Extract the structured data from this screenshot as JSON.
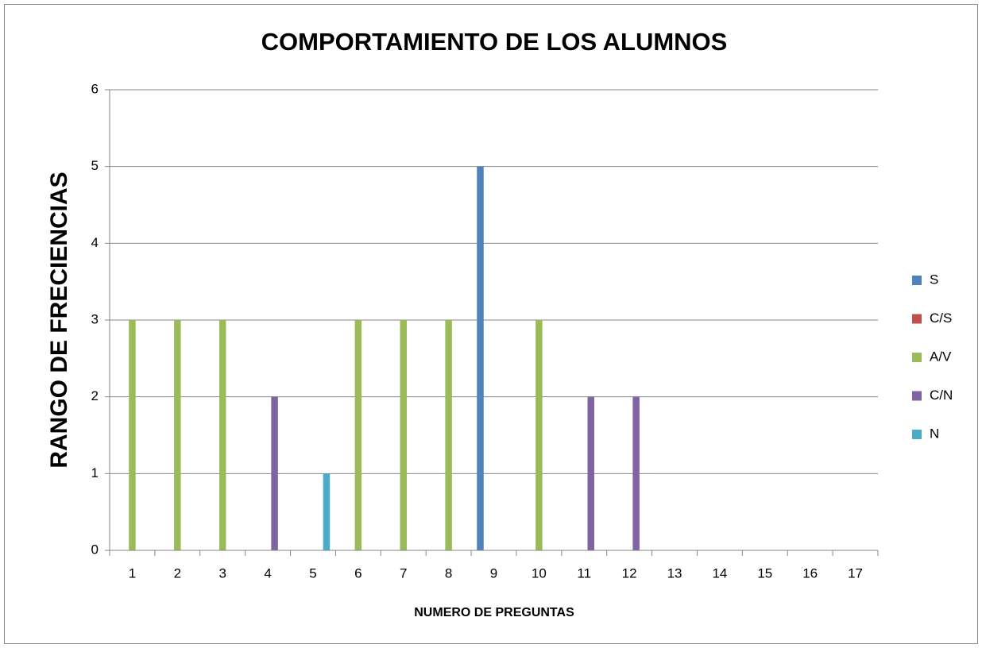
{
  "chart_data": {
    "type": "bar",
    "title": "COMPORTAMIENTO DE LOS ALUMNOS",
    "x_label": "NUMERO DE PREGUNTAS",
    "y_label": "RANGO DE FRECIENCIAS",
    "categories": [
      "1",
      "2",
      "3",
      "4",
      "5",
      "6",
      "7",
      "8",
      "9",
      "10",
      "11",
      "12",
      "13",
      "14",
      "15",
      "16",
      "17"
    ],
    "series": [
      {
        "name": "S",
        "color": "#4f81bd",
        "values": [
          0,
          0,
          0,
          0,
          0,
          0,
          0,
          0,
          5,
          0,
          0,
          0,
          0,
          0,
          0,
          0,
          0
        ]
      },
      {
        "name": "C/S",
        "color": "#c0504d",
        "values": [
          0,
          0,
          0,
          0,
          0,
          0,
          0,
          0,
          0,
          0,
          0,
          0,
          0,
          0,
          0,
          0,
          0
        ]
      },
      {
        "name": "A/V",
        "color": "#9bbb59",
        "values": [
          3,
          3,
          3,
          0,
          0,
          3,
          3,
          3,
          0,
          3,
          0,
          0,
          0,
          0,
          0,
          0,
          0
        ]
      },
      {
        "name": "C/N",
        "color": "#8064a2",
        "values": [
          0,
          0,
          0,
          2,
          0,
          0,
          0,
          0,
          0,
          0,
          2,
          2,
          0,
          0,
          0,
          0,
          0
        ]
      },
      {
        "name": "N",
        "color": "#4bacc6",
        "values": [
          0,
          0,
          0,
          0,
          1,
          0,
          0,
          0,
          0,
          0,
          0,
          0,
          0,
          0,
          0,
          0,
          0
        ]
      }
    ],
    "ylim": [
      0,
      6
    ],
    "yticks": [
      0,
      1,
      2,
      3,
      4,
      5,
      6
    ],
    "grid": true,
    "legend": "right"
  }
}
